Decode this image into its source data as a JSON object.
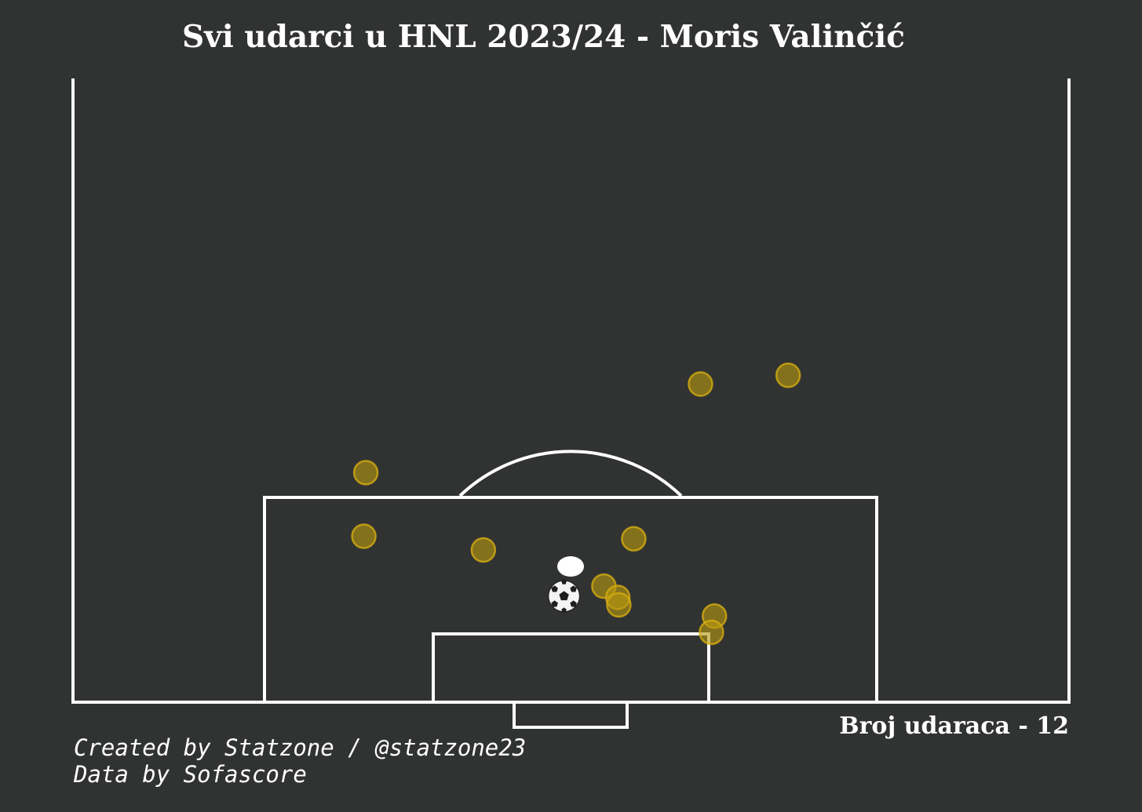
{
  "title": "Svi udarci u HNL 2023/24 - Moris Valinčić",
  "shot_count_label": "Broj udaraca - 12",
  "credits": {
    "line1": "Created by Statzone / @statzone23",
    "line2": "Data by Sofascore"
  },
  "colors": {
    "background": "#313332",
    "lines": "#ffffff",
    "shot_fill": "#b8970e",
    "shot_edge": "#d4ad12",
    "penalty_spot": "#ffffff"
  },
  "chart_data": {
    "type": "scatter",
    "title": "Svi udarci u HNL 2023/24 - Moris Valinčić",
    "xlabel": "",
    "ylabel": "",
    "pitch": "half-pitch, vertical, goal at bottom",
    "xlim": [
      0,
      100
    ],
    "ylim": [
      0,
      50
    ],
    "grid": false,
    "series": [
      {
        "points": [
          {
            "x": 63.0,
            "y": 25.5
          },
          {
            "x": 71.8,
            "y": 26.2
          },
          {
            "x": 29.4,
            "y": 18.4
          },
          {
            "x": 29.2,
            "y": 13.3
          },
          {
            "x": 41.2,
            "y": 12.2
          },
          {
            "x": 56.3,
            "y": 13.1
          },
          {
            "x": 53.3,
            "y": 9.3
          },
          {
            "x": 54.7,
            "y": 8.4
          },
          {
            "x": 54.8,
            "y": 7.8
          },
          {
            "x": 64.4,
            "y": 6.9
          },
          {
            "x": 64.1,
            "y": 5.6
          },
          {
            "x": 49.3,
            "y": 8.5
          }
        ]
      }
    ],
    "shot_count": 12
  }
}
